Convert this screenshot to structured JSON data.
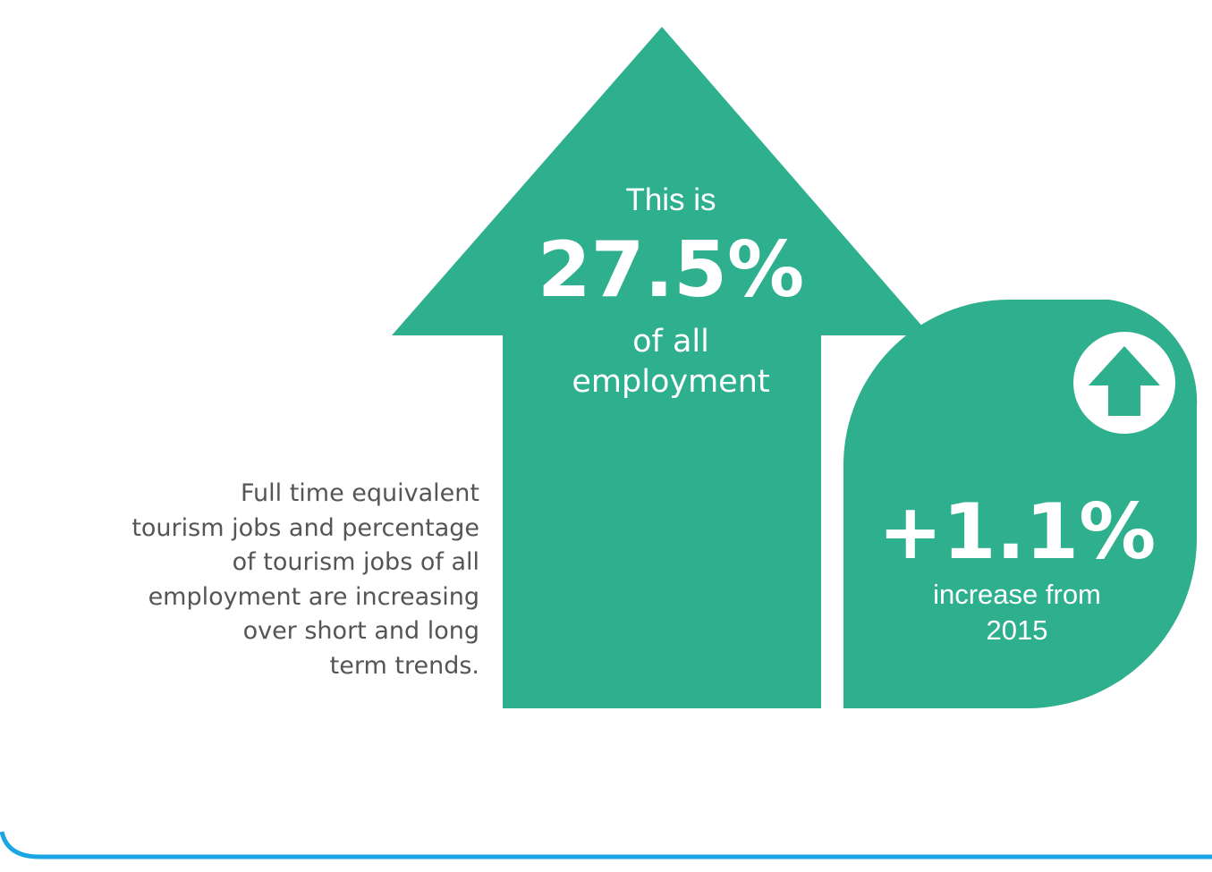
{
  "colors": {
    "accent_green": "#2eaf8e",
    "bottom_rule_blue": "#1aa6e4",
    "body_text": "#555555",
    "background": "#ffffff"
  },
  "description": {
    "lines": [
      "Full time equivalent",
      "tourism jobs and percentage",
      "of tourism jobs of all",
      "employment are increasing",
      "over short and long",
      "term trends."
    ]
  },
  "arrow_stat": {
    "prefix": "This is",
    "value": "27.5%",
    "suffix_lines": [
      "of all",
      "employment"
    ]
  },
  "drop_stat": {
    "value": "+1.1%",
    "label_lines": [
      "increase from",
      "2015"
    ],
    "icon": "up-arrow-icon"
  }
}
